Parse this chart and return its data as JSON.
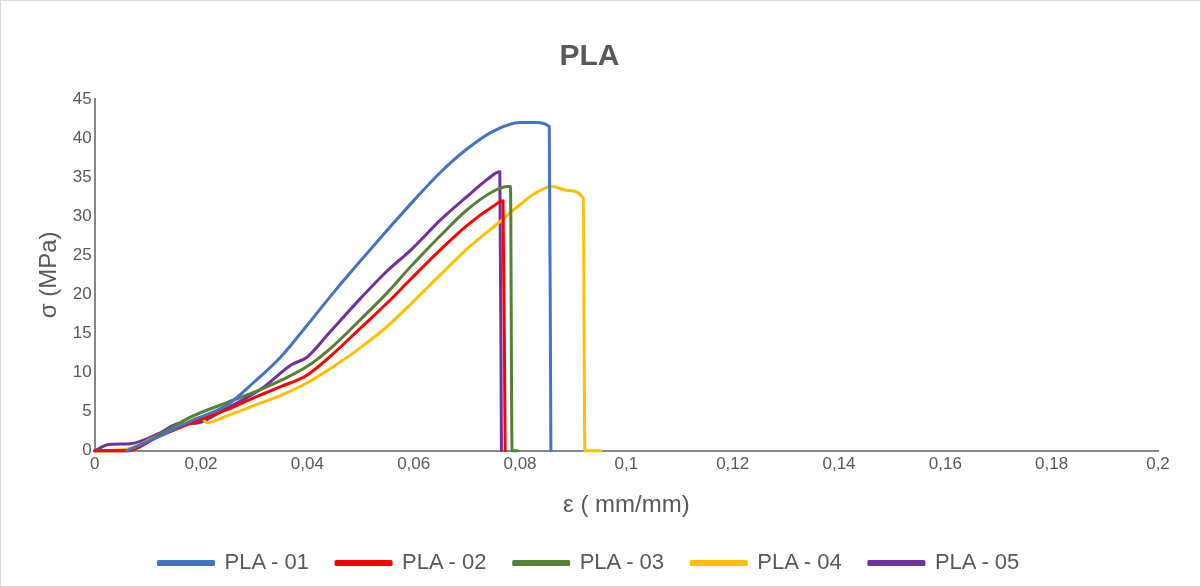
{
  "chart_data": {
    "type": "line",
    "title": "PLA",
    "xlabel": "ε ( mm/mm)",
    "ylabel": "σ (MPa)",
    "xlim": [
      0,
      0.2
    ],
    "xticks": [
      0,
      {
        "value": 0.02,
        "label": "0,02"
      },
      {
        "value": 0.04,
        "label": "0,04"
      },
      {
        "value": 0.06,
        "label": "0,06"
      },
      {
        "value": 0.08,
        "label": "0,08"
      },
      {
        "value": 0.1,
        "label": "0,1"
      },
      {
        "value": 0.12,
        "label": "0,12"
      },
      {
        "value": 0.14,
        "label": "0,14"
      },
      {
        "value": 0.16,
        "label": "0,16"
      },
      {
        "value": 0.18,
        "label": "0,18"
      },
      {
        "value": 0.2,
        "label": "0,2"
      }
    ],
    "ylim": [
      0,
      45
    ],
    "yticks": [
      0,
      5,
      10,
      15,
      20,
      25,
      30,
      35,
      40,
      45
    ],
    "grid": false,
    "legend": "bottom",
    "marker": "none",
    "line_style": "solid",
    "series": [
      {
        "name": "PLA - 01",
        "color": "#4472c4",
        "x": [
          0.006,
          0.012,
          0.018,
          0.025,
          0.03,
          0.035,
          0.04,
          0.045,
          0.05,
          0.055,
          0.06,
          0.065,
          0.07,
          0.075,
          0.08,
          0.083,
          0.0855,
          0.0858
        ],
        "values": [
          0,
          1.8,
          3.8,
          5.9,
          8.8,
          12,
          16.1,
          20.3,
          24.3,
          28.2,
          32,
          35.6,
          38.6,
          40.9,
          42,
          42,
          41.5,
          0
        ]
      },
      {
        "name": "PLA - 02",
        "color": "#ff0000",
        "x": [
          0,
          0.006,
          0.012,
          0.018,
          0.025,
          0.03,
          0.035,
          0.04,
          0.045,
          0.05,
          0.055,
          0.0595,
          0.065,
          0.07,
          0.075,
          0.0768,
          0.0772
        ],
        "values": [
          0,
          0,
          1.8,
          3.5,
          5.3,
          6.8,
          8.2,
          9.7,
          12.5,
          15.7,
          18.9,
          22,
          25.7,
          28.8,
          31.3,
          32,
          0
        ]
      },
      {
        "name": "PLA - 03",
        "color": "#548235",
        "x": [
          0,
          0.006,
          0.012,
          0.018,
          0.025,
          0.03,
          0.035,
          0.04,
          0.045,
          0.05,
          0.055,
          0.0595,
          0.065,
          0.07,
          0.075,
          0.0776,
          0.0782,
          0.0785,
          0.0795
        ],
        "values": [
          0,
          0,
          2,
          4.3,
          6.2,
          7.5,
          9,
          10.8,
          13.5,
          16.8,
          20.2,
          23.6,
          27.5,
          30.8,
          33.2,
          33.8,
          33.8,
          0,
          0
        ]
      },
      {
        "name": "PLA - 04",
        "color": "#ffc000",
        "x": [
          0,
          0.006,
          0.012,
          0.018,
          0.02,
          0.021,
          0.025,
          0.03,
          0.035,
          0.04,
          0.045,
          0.05,
          0.055,
          0.0595,
          0.065,
          0.07,
          0.0762,
          0.08,
          0.083,
          0.086,
          0.089,
          0.0919,
          0.0922,
          0.0952
        ],
        "values": [
          0,
          0.2,
          2,
          3.8,
          4.3,
          3.6,
          4.5,
          5.8,
          7.1,
          8.7,
          10.8,
          13.2,
          15.9,
          18.8,
          22.5,
          25.8,
          29.3,
          31.5,
          33,
          33.8,
          33.3,
          32.3,
          0,
          0
        ]
      },
      {
        "name": "PLA - 05",
        "color": "#7030a0",
        "x": [
          0,
          0.0027,
          0.0067,
          0.012,
          0.016,
          0.0185,
          0.025,
          0.0315,
          0.037,
          0.04,
          0.044,
          0.05,
          0.055,
          0.0595,
          0.065,
          0.07,
          0.074,
          0.0762,
          0.0765
        ],
        "values": [
          0,
          0.8,
          0.9,
          2.2,
          3.5,
          3.5,
          5.5,
          8,
          11,
          12,
          15,
          19.5,
          23,
          25.7,
          29.5,
          32.5,
          34.8,
          35.7,
          0
        ]
      }
    ]
  }
}
